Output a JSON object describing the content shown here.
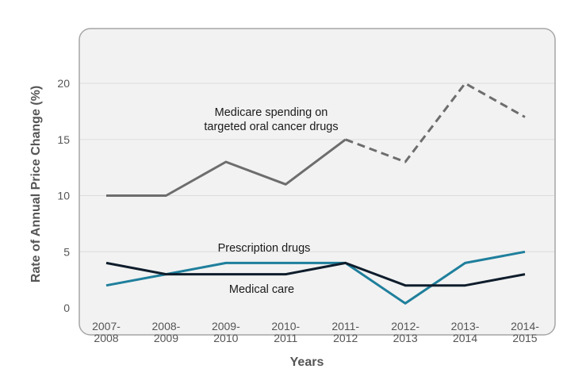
{
  "chart_data": {
    "type": "line",
    "title": "",
    "xlabel": "Years",
    "ylabel": "Rate of Annual Price Change (%)",
    "ylim": [
      0,
      20
    ],
    "yticks": [
      0,
      5,
      10,
      15,
      20
    ],
    "grid": true,
    "categories": [
      [
        "2007-",
        "2008"
      ],
      [
        "2008-",
        "2009"
      ],
      [
        "2009-",
        "2010"
      ],
      [
        "2010-",
        "2011"
      ],
      [
        "2011-",
        "2012"
      ],
      [
        "2012-",
        "2013"
      ],
      [
        "2013-",
        "2014"
      ],
      [
        "2014-",
        "2015"
      ]
    ],
    "series": [
      {
        "name": "Medicare spending on targeted oral cancer drugs",
        "label_lines": [
          "Medicare spending on",
          "targeted oral cancer drugs"
        ],
        "values": [
          10,
          10,
          13,
          11,
          15,
          13,
          20,
          17
        ],
        "color": "#6d6d6d",
        "dashed_from_index": 4
      },
      {
        "name": "Prescription drugs",
        "label_lines": [
          "Prescription drugs"
        ],
        "values": [
          2,
          3,
          4,
          4,
          4,
          0.4,
          4,
          5
        ],
        "color": "#1f7f9c"
      },
      {
        "name": "Medical care",
        "label_lines": [
          "Medical care"
        ],
        "values": [
          4,
          3,
          3,
          3,
          4,
          2,
          2,
          3
        ],
        "color": "#0f1d2c"
      }
    ],
    "colors": {
      "plot_background": "#f2f2f2",
      "plot_border": "#a6a6a6",
      "grid": "#dcdcdc",
      "text": "#555555"
    }
  }
}
